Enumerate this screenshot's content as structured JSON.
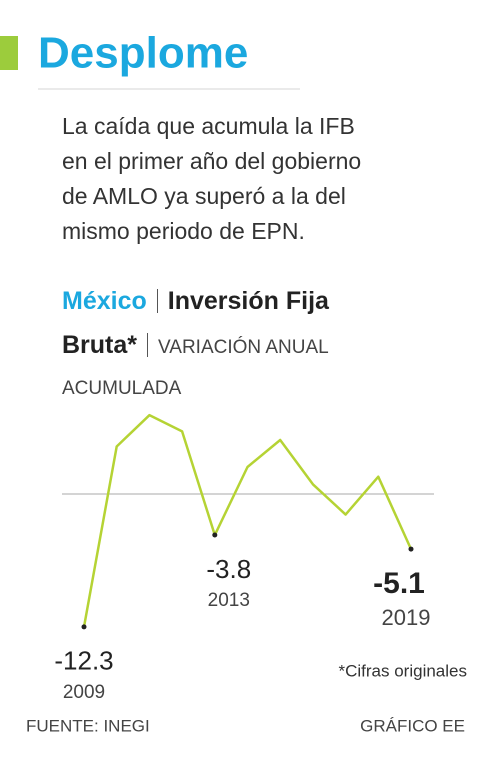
{
  "header": {
    "title": "Desplome",
    "summary_lines": [
      "La caída que acumula la IFB",
      "en el primer año del gobierno",
      "de AMLO ya superó a la del",
      "mismo periodo de EPN."
    ]
  },
  "chart_data": {
    "type": "line",
    "country": "México",
    "title": "Inversión Fija Bruta*",
    "subtitle": "VARIACIÓN ANUAL ACUMULADA",
    "categories": [
      "2009",
      null,
      null,
      null,
      "2013",
      null,
      null,
      null,
      null,
      null,
      "2019"
    ],
    "series": [
      {
        "color": "#b5d334",
        "values": [
          -12.3,
          4.4,
          7.3,
          5.8,
          -3.8,
          2.5,
          5.0,
          0.9,
          -1.9,
          1.6,
          -5.1
        ]
      }
    ],
    "note": "*Cifras originales"
  },
  "footer": {
    "source": "FUENTE: INEGI",
    "credit": "GRÁFICO EE"
  }
}
